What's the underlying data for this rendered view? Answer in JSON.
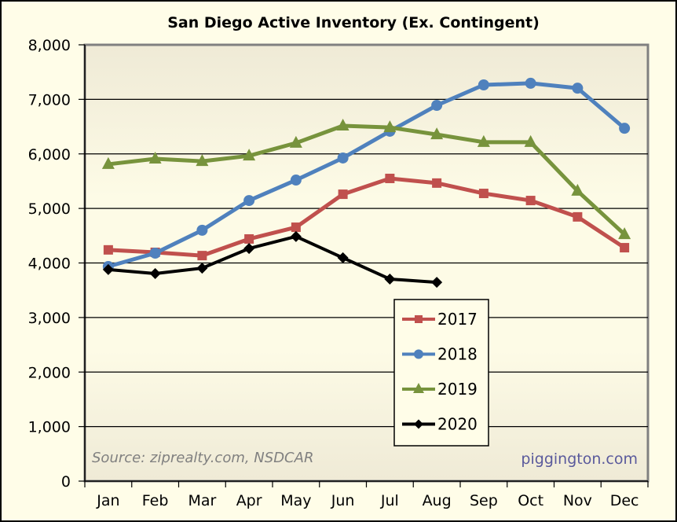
{
  "chart_data": {
    "type": "line",
    "title": "San Diego Active Inventory (Ex. Contingent)",
    "xlabel": "",
    "ylabel": "",
    "categories": [
      "Jan",
      "Feb",
      "Mar",
      "Apr",
      "May",
      "Jun",
      "Jul",
      "Aug",
      "Sep",
      "Oct",
      "Nov",
      "Dec"
    ],
    "ylim": [
      0,
      8000
    ],
    "yticks": [
      0,
      1000,
      2000,
      3000,
      4000,
      5000,
      6000,
      7000,
      8000
    ],
    "ytick_labels": [
      "0",
      "1,000",
      "2,000",
      "3,000",
      "4,000",
      "5,000",
      "6,000",
      "7,000",
      "8,000"
    ],
    "grid": true,
    "legend_position": "center-bottom",
    "series": [
      {
        "name": "2017",
        "color": "#c0504d",
        "marker": "square",
        "values": [
          4240,
          4195,
          4135,
          4440,
          4655,
          5260,
          5550,
          5465,
          5275,
          5145,
          4845,
          4280
        ]
      },
      {
        "name": "2018",
        "color": "#4f81bd",
        "marker": "circle",
        "values": [
          3935,
          4180,
          4600,
          5145,
          5520,
          5925,
          6415,
          6890,
          7265,
          7295,
          7205,
          6470
        ]
      },
      {
        "name": "2019",
        "color": "#77933c",
        "marker": "triangle",
        "values": [
          5810,
          5910,
          5865,
          5965,
          6200,
          6515,
          6485,
          6355,
          6215,
          6215,
          5320,
          4525
        ]
      },
      {
        "name": "2020",
        "color": "#000000",
        "marker": "diamond",
        "values": [
          3880,
          3805,
          3905,
          4265,
          4485,
          4095,
          3705,
          3645,
          null,
          null,
          null,
          null
        ]
      }
    ],
    "annotations": {
      "source": "Source: ziprealty.com, NSDCAR",
      "brand": "piggington.com"
    }
  }
}
